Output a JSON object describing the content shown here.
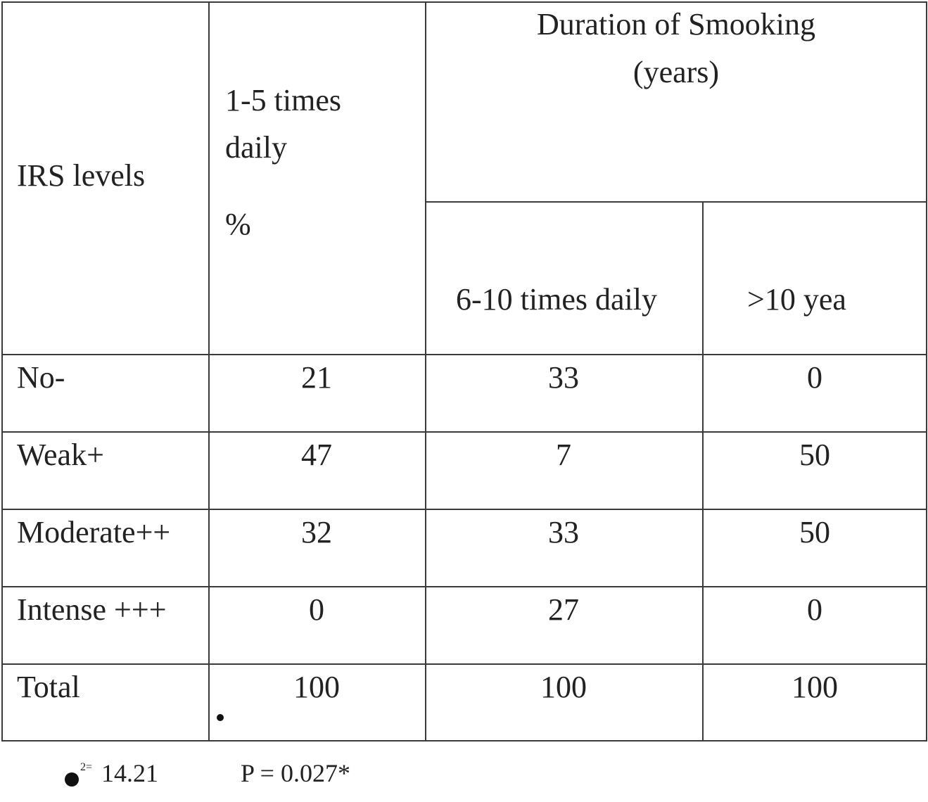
{
  "table": {
    "header": {
      "row_label": "IRS levels",
      "col1_line1": "1-5 times",
      "col1_line2": "daily",
      "col1_unit": "%",
      "group_line1": "Duration of Smooking",
      "group_line2": "(years)",
      "col2": "6-10 times daily",
      "col3": ">10 yea"
    },
    "rows": [
      {
        "label": "No-",
        "c1": "21",
        "c2": "33",
        "c3": "0"
      },
      {
        "label": "Weak+",
        "c1": "47",
        "c2": "7",
        "c3": "50"
      },
      {
        "label": "Moderate++",
        "c1": "32",
        "c2": "33",
        "c3": "50"
      },
      {
        "label": "Intense +++",
        "c1": "0",
        "c2": "27",
        "c3": "0"
      },
      {
        "label": "Total",
        "c1": "100",
        "c2": "100",
        "c3": "100"
      }
    ]
  },
  "footnote": {
    "superscript": "2=",
    "chi_value": "14.21",
    "p_value": "P = 0.027*"
  }
}
